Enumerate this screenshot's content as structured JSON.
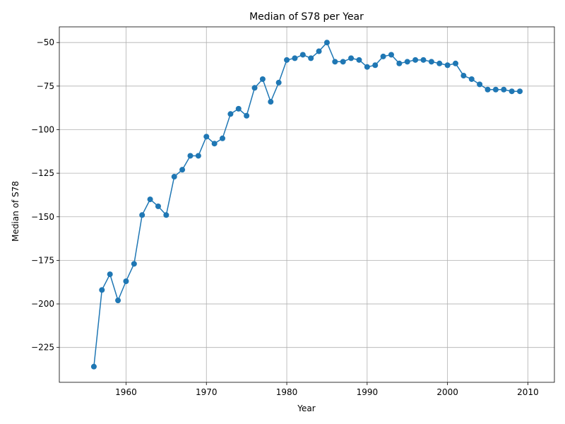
{
  "chart_data": {
    "type": "line",
    "title": "Median of S78 per Year",
    "xlabel": "Year",
    "ylabel": "Median of S78",
    "xlim": [
      1951.7,
      2013.3
    ],
    "ylim": [
      -245,
      -41
    ],
    "xticks": [
      1960,
      1970,
      1980,
      1990,
      2000,
      2010
    ],
    "yticks": [
      -225,
      -200,
      -175,
      -150,
      -125,
      -100,
      -75,
      -50
    ],
    "grid": true,
    "color": "#1f77b4",
    "marker": "circle",
    "series": [
      {
        "x": [
          1956,
          1957,
          1958,
          1959,
          1960,
          1961,
          1962,
          1963,
          1964,
          1965,
          1966,
          1967,
          1968,
          1969,
          1970,
          1971,
          1972,
          1973,
          1974,
          1975,
          1976,
          1977,
          1978,
          1979,
          1980,
          1981,
          1982,
          1983,
          1984,
          1985,
          1986,
          1987,
          1988,
          1989,
          1990,
          1991,
          1992,
          1993,
          1994,
          1995,
          1996,
          1997,
          1998,
          1999,
          2000,
          2001,
          2002,
          2003,
          2004,
          2005,
          2006,
          2007,
          2008,
          2009
        ],
        "y": [
          -236,
          -192,
          -183,
          -198,
          -187,
          -177,
          -149,
          -140,
          -144,
          -149,
          -127,
          -123,
          -115,
          -115,
          -104,
          -108,
          -105,
          -91,
          -88,
          -92,
          -76,
          -71,
          -84,
          -73,
          -60,
          -59,
          -57,
          -59,
          -55,
          -50,
          -61,
          -61,
          -59,
          -60,
          -64,
          -63,
          -58,
          -57,
          -62,
          -61,
          -60,
          -60,
          -61,
          -62,
          -63,
          -62,
          -69,
          -71,
          -74,
          -77,
          -77,
          -77,
          -78,
          -78
        ]
      }
    ]
  }
}
